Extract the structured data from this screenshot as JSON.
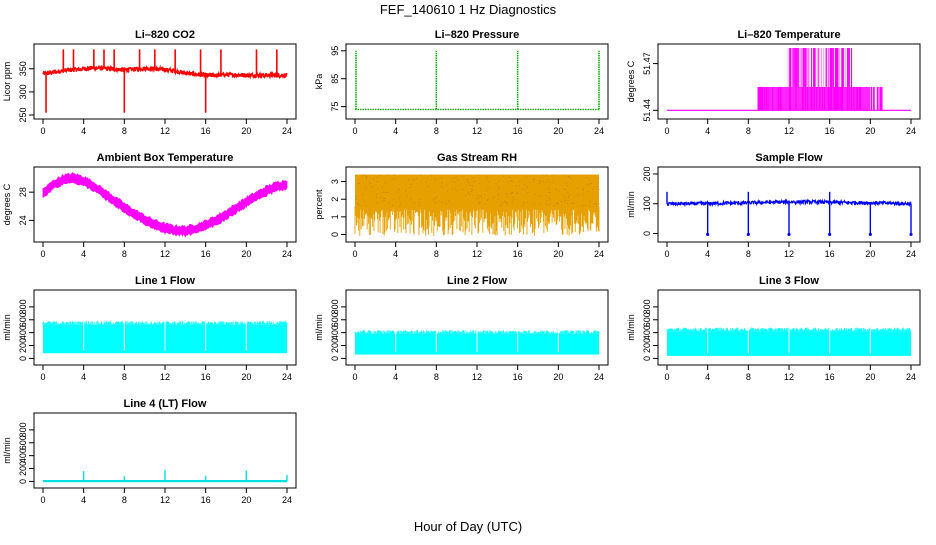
{
  "figure": {
    "title": "FEF_140610  1 Hz Diagnostics",
    "xlabel": "Hour of Day (UTC)"
  },
  "chart_data": [
    {
      "type": "line",
      "title": "Li–820 CO2",
      "ylabel": "Licor ppm",
      "x_ticks": [
        0,
        4,
        8,
        12,
        16,
        20,
        24
      ],
      "y_ticks": [
        250,
        300,
        350
      ],
      "xlim": [
        0,
        24
      ],
      "ylim": [
        250,
        395
      ],
      "color": "#ff0000",
      "x": [
        0,
        1,
        2,
        3,
        4,
        5,
        6,
        7,
        8,
        9,
        10,
        11,
        12,
        13,
        14,
        15,
        16,
        17,
        18,
        19,
        20,
        21,
        22,
        23,
        24
      ],
      "series": [
        {
          "values": [
            340,
            342,
            346,
            348,
            350,
            352,
            351,
            349,
            348,
            349,
            351,
            350,
            348,
            345,
            341,
            338,
            336,
            336,
            337,
            337,
            336,
            336,
            336,
            336,
            336
          ]
        }
      ],
      "spikes_up_at": [
        2,
        3,
        5,
        6,
        7,
        9.5,
        11,
        13,
        15.5,
        17.5,
        21,
        23
      ],
      "spikes_down_at": [
        0.3,
        8,
        16
      ],
      "spike_high": 392,
      "spike_low": 255
    },
    {
      "type": "line",
      "title": "Li–820 Pressure",
      "ylabel": "kPa",
      "x_ticks": [
        0,
        4,
        8,
        12,
        16,
        20,
        24
      ],
      "y_ticks": [
        75,
        85,
        95
      ],
      "xlim": [
        0,
        24
      ],
      "ylim": [
        72,
        96
      ],
      "color": "#00aa00",
      "baseline": 74,
      "spikes_up_at": [
        0.1,
        8,
        16,
        24
      ],
      "spike_high": 95
    },
    {
      "type": "line",
      "title": "Li–820 Temperature",
      "ylabel": "degrees C",
      "x_ticks": [
        0,
        4,
        8,
        12,
        16,
        20,
        24
      ],
      "y_ticks": [
        51.44,
        51.47
      ],
      "xlim": [
        0,
        24
      ],
      "ylim": [
        51.437,
        51.48
      ],
      "color": "#ff00ff",
      "baseline": 51.44,
      "level_1": 51.455,
      "level_2": 51.48,
      "active_range": [
        8.5,
        21.5
      ],
      "top_range": [
        11.8,
        18
      ]
    },
    {
      "type": "line",
      "title": "Ambient Box Temperature",
      "ylabel": "degrees C",
      "x_ticks": [
        0,
        4,
        8,
        12,
        16,
        20,
        24
      ],
      "y_ticks": [
        24,
        28
      ],
      "xlim": [
        0,
        24
      ],
      "ylim": [
        21.5,
        31
      ],
      "color": "#ff00ff",
      "x": [
        0,
        1,
        2,
        3,
        4,
        5,
        6,
        7,
        8,
        9,
        10,
        11,
        12,
        13,
        14,
        15,
        16,
        17,
        18,
        19,
        20,
        21,
        22,
        23,
        24
      ],
      "series": [
        {
          "values": [
            27.8,
            29.0,
            29.8,
            30.0,
            29.6,
            28.8,
            27.8,
            26.8,
            25.8,
            24.9,
            24.1,
            23.4,
            22.9,
            22.6,
            22.5,
            22.8,
            23.3,
            24.0,
            24.8,
            25.7,
            26.6,
            27.4,
            28.2,
            28.8,
            29.1
          ]
        }
      ],
      "band": 0.8
    },
    {
      "type": "line",
      "title": "Gas Stream RH",
      "ylabel": "percent",
      "x_ticks": [
        0,
        4,
        8,
        12,
        16,
        20,
        24
      ],
      "y_ticks": [
        0,
        1,
        2,
        3
      ],
      "xlim": [
        0,
        24
      ],
      "ylim": [
        -0.2,
        3.6
      ],
      "color": "#e6a000",
      "upper": 3.4,
      "lower_min": -0.1
    },
    {
      "type": "line",
      "title": "Sample Flow",
      "ylabel": "ml/min",
      "x_ticks": [
        0,
        4,
        8,
        12,
        16,
        20,
        24
      ],
      "y_ticks": [
        0,
        100,
        200
      ],
      "xlim": [
        0,
        24
      ],
      "ylim": [
        -15,
        210
      ],
      "color": "#0000ff",
      "x": [
        0,
        2,
        4,
        6,
        8,
        10,
        12,
        14,
        16,
        18,
        20,
        22,
        24
      ],
      "series": [
        {
          "values": [
            100,
            100,
            101,
            102,
            103,
            105,
            106,
            106,
            105,
            104,
            103,
            102,
            100
          ]
        }
      ],
      "spikes_up_at": [
        0,
        8,
        16
      ],
      "spike_high": 140,
      "spikes_down_at": [
        4,
        8,
        12,
        16,
        20,
        24
      ],
      "spike_low": -3
    },
    {
      "type": "area",
      "title": "Line 1 Flow",
      "ylabel": "ml/min",
      "x_ticks": [
        0,
        4,
        8,
        12,
        16,
        20,
        24
      ],
      "y_ticks": [
        0,
        200,
        400,
        600,
        800
      ],
      "xlim": [
        0,
        24
      ],
      "ylim": [
        -40,
        1000
      ],
      "color": "#00ffff",
      "upper": 560,
      "lower": 80,
      "gaps_at": [
        4,
        8,
        12,
        16,
        20
      ]
    },
    {
      "type": "area",
      "title": "Line 2 Flow",
      "ylabel": "ml/min",
      "x_ticks": [
        0,
        4,
        8,
        12,
        16,
        20,
        24
      ],
      "y_ticks": [
        0,
        200,
        400,
        600,
        800
      ],
      "xlim": [
        0,
        24
      ],
      "ylim": [
        -40,
        1000
      ],
      "color": "#00ffff",
      "upper": 420,
      "lower": 60,
      "gaps_at": [
        4,
        8,
        12,
        16,
        20
      ]
    },
    {
      "type": "area",
      "title": "Line 3 Flow",
      "ylabel": "ml/min",
      "x_ticks": [
        0,
        4,
        8,
        12,
        16,
        20,
        24
      ],
      "y_ticks": [
        0,
        200,
        400,
        600,
        800
      ],
      "xlim": [
        0,
        24
      ],
      "ylim": [
        -40,
        1000
      ],
      "color": "#00ffff",
      "upper": 460,
      "lower": 40,
      "gaps_at": [
        4,
        8,
        12,
        16,
        20
      ]
    },
    {
      "type": "line",
      "title": "Line 4 (LT) Flow",
      "ylabel": "ml/min",
      "x_ticks": [
        0,
        4,
        8,
        12,
        16,
        20,
        24
      ],
      "y_ticks": [
        0,
        200,
        400,
        600,
        800
      ],
      "xlim": [
        0,
        24
      ],
      "ylim": [
        -40,
        1000
      ],
      "color": "#00e0e0",
      "baseline": 5,
      "spikes_up_at": [
        4,
        8,
        12,
        16,
        20,
        24
      ],
      "spike_values": [
        160,
        80,
        180,
        90,
        170,
        100
      ]
    }
  ]
}
